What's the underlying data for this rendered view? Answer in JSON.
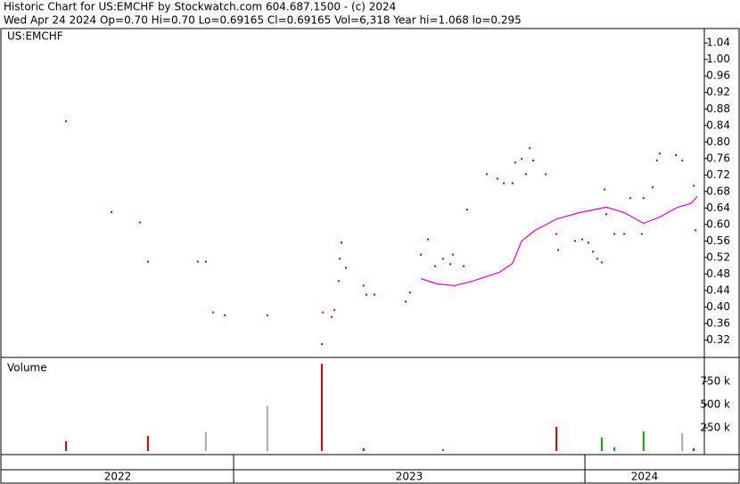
{
  "chart_data": [
    {
      "type": "scatter",
      "title": "Historic Chart for US:EMCHF by Stockwatch.com 604.687.1500 - (c) 2024",
      "subtitle": "Wed Apr 24 2024  Op=0.70  Hi=0.70  Lo=0.69165  Cl=0.69165  Vol=6,318  Year hi=1.068  lo=0.295",
      "xlim": [
        2022.34,
        2024.34
      ],
      "ylim": [
        0.28,
        1.075
      ],
      "yticks": [
        0.32,
        0.36,
        {
          "value": 0.4,
          "label": "0.40"
        },
        0.44,
        0.48,
        0.52,
        0.56,
        {
          "value": 0.6,
          "label": "0.60"
        },
        0.64,
        0.68,
        0.72,
        0.76,
        {
          "value": 0.8,
          "label": "0.80"
        },
        0.84,
        0.88,
        0.92,
        0.96,
        {
          "value": 1.0,
          "label": "1.00"
        },
        1.04
      ],
      "series": [
        {
          "name": "US:EMCHF",
          "color": "#cc0000",
          "x": [
            2022.523,
            2022.652,
            2022.733,
            2022.756,
            2022.898,
            2022.921,
            2022.942,
            2022.975,
            2023.096,
            2023.251,
            2023.254,
            2023.279,
            2023.287,
            2023.299,
            2023.302,
            2023.307,
            2023.32,
            2023.37,
            2023.378,
            2023.401,
            2023.49,
            2023.502,
            2023.533,
            2023.553,
            2023.574,
            2023.596,
            2023.617,
            2023.624,
            2023.655,
            2023.665,
            2023.721,
            2023.751,
            2023.769,
            2023.794,
            2023.802,
            2023.82,
            2023.832,
            2023.843,
            2023.853,
            2023.888,
            2023.919,
            2023.924,
            2023.972,
            2023.992,
            2024.01,
            2024.023,
            2024.035,
            2024.048,
            2024.056,
            2024.061,
            2024.084,
            2024.112,
            2024.129,
            2024.162,
            2024.167,
            2024.193,
            2024.205,
            2024.213,
            2024.259,
            2024.277,
            2024.31,
            2024.315
          ],
          "values": [
            0.85,
            0.63,
            0.605,
            0.51,
            0.51,
            0.51,
            0.387,
            0.38,
            0.38,
            0.31,
            0.387,
            0.376,
            0.393,
            0.463,
            0.517,
            0.556,
            0.495,
            0.452,
            0.43,
            0.43,
            0.413,
            0.435,
            0.527,
            0.564,
            0.499,
            0.517,
            0.504,
            0.527,
            0.499,
            0.636,
            0.722,
            0.711,
            0.7,
            0.7,
            0.75,
            0.759,
            0.722,
            0.785,
            0.755,
            0.722,
            0.577,
            0.538,
            0.56,
            0.564,
            0.556,
            0.534,
            0.517,
            0.508,
            0.685,
            0.625,
            0.577,
            0.577,
            0.664,
            0.577,
            0.664,
            0.69,
            0.755,
            0.772,
            0.768,
            0.755,
            0.694,
            0.586
          ]
        },
        {
          "type": "line",
          "color": "#dd00dd",
          "x": [
            2023.533,
            2023.579,
            2023.629,
            2023.68,
            2023.756,
            2023.794,
            2023.82,
            2023.858,
            2023.921,
            2023.985,
            2024.061,
            2024.112,
            2024.167,
            2024.213,
            2024.264,
            2024.302,
            2024.32
          ],
          "values": [
            0.469,
            0.456,
            0.452,
            0.463,
            0.484,
            0.506,
            0.56,
            0.586,
            0.614,
            0.629,
            0.642,
            0.629,
            0.603,
            0.618,
            0.642,
            0.651,
            0.668
          ]
        }
      ]
    },
    {
      "type": "bar",
      "ylabel": "Volume",
      "xlim": [
        2022.34,
        2024.34
      ],
      "ylim": [
        0,
        1000000
      ],
      "yticks": [
        {
          "value": 250000,
          "label": "250 k"
        },
        {
          "value": 500000,
          "label": "500 k"
        },
        {
          "value": 750000,
          "label": "750 k"
        }
      ],
      "xticks": [
        2022,
        2023,
        2024
      ],
      "x": [
        2022.523,
        2022.756,
        2022.921,
        2023.096,
        2023.251,
        2023.37,
        2023.596,
        2023.919,
        2024.048,
        2024.084,
        2024.167,
        2024.277,
        2024.31
      ],
      "values": [
        106000,
        163000,
        202000,
        490000,
        942000,
        30000,
        20000,
        260000,
        144000,
        40000,
        212000,
        192000,
        30000
      ],
      "colors": [
        "#cc0000",
        "#cc0000",
        "#aaaaaa",
        "#aaaaaa",
        "#cc0000",
        "#cc0000",
        "#00aa00",
        "#cc0000",
        "#00aa00",
        "#00aa00",
        "#00aa00",
        "#aaaaaa",
        "#cc0000"
      ]
    }
  ]
}
